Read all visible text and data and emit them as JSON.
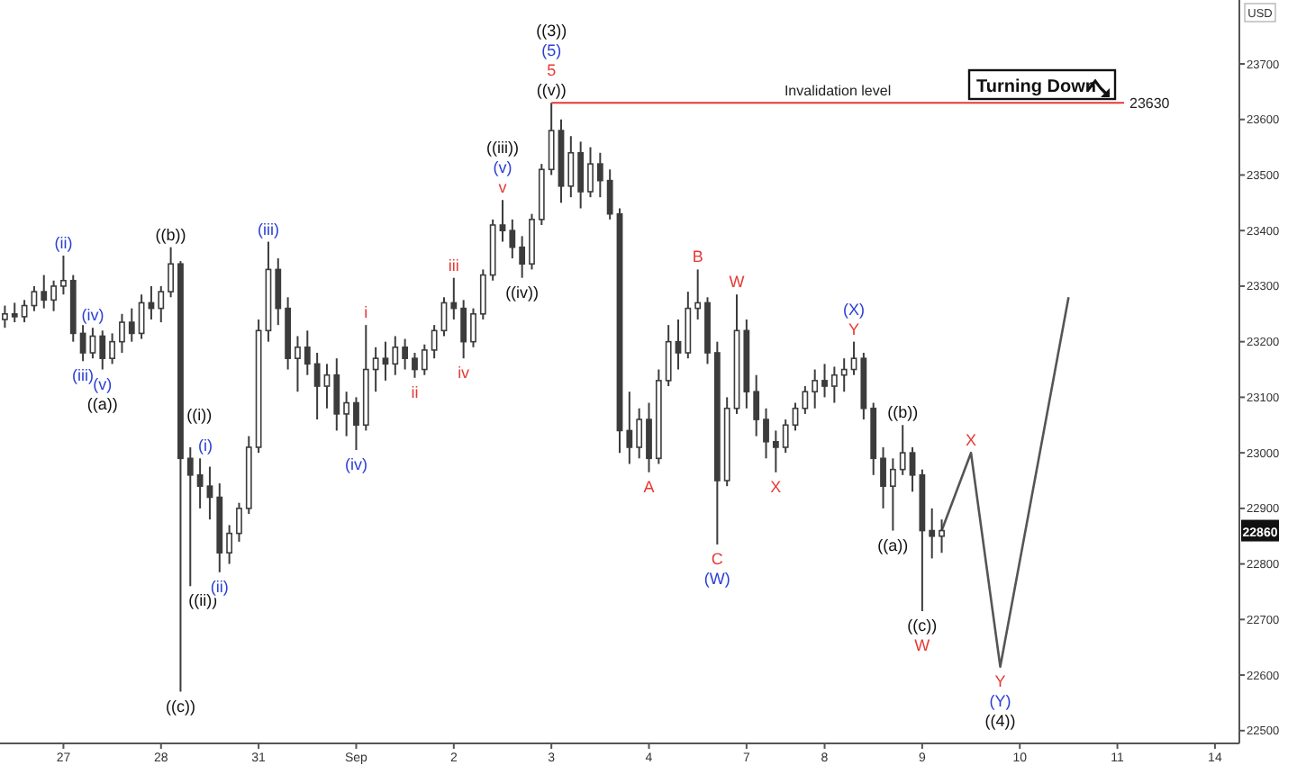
{
  "chart_data": {
    "type": "candlestick",
    "ylabel": "USD",
    "color": "#3c3c3c",
    "categories": [
      null,
      null,
      null,
      null,
      null,
      null,
      "27",
      null,
      null,
      null,
      null,
      null,
      null,
      null,
      null,
      null,
      "28",
      null,
      null,
      null,
      null,
      null,
      null,
      null,
      null,
      null,
      "31",
      null,
      null,
      null,
      null,
      null,
      null,
      null,
      null,
      null,
      "Sep",
      null,
      null,
      null,
      null,
      null,
      null,
      null,
      null,
      null,
      "2",
      null,
      null,
      null,
      null,
      null,
      null,
      null,
      null,
      null,
      "3",
      null,
      null,
      null,
      null,
      null,
      null,
      null,
      null,
      null,
      "4",
      null,
      null,
      null,
      null,
      null,
      null,
      null,
      null,
      null,
      "7",
      null,
      null,
      null,
      null,
      null,
      null,
      null,
      "8",
      null,
      null,
      null,
      null,
      null,
      null,
      null,
      null,
      null,
      "9",
      null,
      null,
      null,
      null,
      null,
      null,
      null,
      null,
      null,
      "10",
      null,
      null,
      null,
      null,
      null,
      null,
      null,
      null,
      null,
      "11",
      null,
      null,
      null,
      null,
      null,
      null,
      null,
      null,
      null,
      "14",
      null,
      null
    ],
    "ohlc": [
      [
        23240,
        23265,
        23225,
        23250
      ],
      [
        23250,
        23270,
        23235,
        23245
      ],
      [
        23245,
        23275,
        23235,
        23265
      ],
      [
        23265,
        23300,
        23255,
        23290
      ],
      [
        23290,
        23320,
        23260,
        23275
      ],
      [
        23275,
        23310,
        23255,
        23300
      ],
      [
        23300,
        23355,
        23285,
        23310
      ],
      [
        23310,
        23320,
        23200,
        23215
      ],
      [
        23215,
        23230,
        23165,
        23180
      ],
      [
        23180,
        23225,
        23170,
        23210
      ],
      [
        23210,
        23220,
        23150,
        23170
      ],
      [
        23170,
        23215,
        23160,
        23200
      ],
      [
        23200,
        23250,
        23180,
        23235
      ],
      [
        23235,
        23260,
        23200,
        23215
      ],
      [
        23215,
        23285,
        23205,
        23270
      ],
      [
        23270,
        23300,
        23240,
        23260
      ],
      [
        23260,
        23300,
        23235,
        23290
      ],
      [
        23290,
        23370,
        23280,
        23340
      ],
      [
        23340,
        23345,
        22570,
        22990
      ],
      [
        22990,
        23010,
        22760,
        22960
      ],
      [
        22960,
        22990,
        22900,
        22940
      ],
      [
        22940,
        22975,
        22880,
        22920
      ],
      [
        22920,
        22945,
        22785,
        22820
      ],
      [
        22820,
        22870,
        22800,
        22855
      ],
      [
        22855,
        22910,
        22840,
        22900
      ],
      [
        22900,
        23030,
        22890,
        23010
      ],
      [
        23010,
        23240,
        23000,
        23220
      ],
      [
        23220,
        23380,
        23200,
        23330
      ],
      [
        23330,
        23350,
        23230,
        23260
      ],
      [
        23260,
        23280,
        23150,
        23170
      ],
      [
        23170,
        23210,
        23110,
        23190
      ],
      [
        23190,
        23220,
        23140,
        23160
      ],
      [
        23160,
        23180,
        23060,
        23120
      ],
      [
        23120,
        23160,
        23080,
        23140
      ],
      [
        23140,
        23170,
        23040,
        23070
      ],
      [
        23070,
        23110,
        23030,
        23090
      ],
      [
        23090,
        23100,
        23005,
        23050
      ],
      [
        23050,
        23230,
        23040,
        23150
      ],
      [
        23150,
        23190,
        23110,
        23170
      ],
      [
        23170,
        23200,
        23130,
        23160
      ],
      [
        23160,
        23210,
        23140,
        23190
      ],
      [
        23190,
        23205,
        23150,
        23170
      ],
      [
        23170,
        23180,
        23135,
        23150
      ],
      [
        23150,
        23195,
        23140,
        23185
      ],
      [
        23185,
        23230,
        23170,
        23220
      ],
      [
        23220,
        23280,
        23210,
        23270
      ],
      [
        23270,
        23315,
        23240,
        23260
      ],
      [
        23260,
        23275,
        23170,
        23200
      ],
      [
        23200,
        23260,
        23190,
        23250
      ],
      [
        23250,
        23330,
        23240,
        23320
      ],
      [
        23320,
        23420,
        23310,
        23410
      ],
      [
        23410,
        23455,
        23380,
        23400
      ],
      [
        23400,
        23420,
        23350,
        23370
      ],
      [
        23370,
        23390,
        23315,
        23340
      ],
      [
        23340,
        23430,
        23330,
        23420
      ],
      [
        23420,
        23520,
        23410,
        23510
      ],
      [
        23510,
        23630,
        23500,
        23580
      ],
      [
        23580,
        23600,
        23450,
        23480
      ],
      [
        23480,
        23570,
        23460,
        23540
      ],
      [
        23540,
        23560,
        23440,
        23470
      ],
      [
        23470,
        23550,
        23460,
        23520
      ],
      [
        23520,
        23540,
        23460,
        23490
      ],
      [
        23490,
        23510,
        23420,
        23430
      ],
      [
        23430,
        23440,
        23000,
        23040
      ],
      [
        23040,
        23110,
        22980,
        23010
      ],
      [
        23010,
        23080,
        22990,
        23060
      ],
      [
        23060,
        23090,
        22965,
        22990
      ],
      [
        22990,
        23150,
        22980,
        23130
      ],
      [
        23130,
        23230,
        23120,
        23200
      ],
      [
        23200,
        23240,
        23150,
        23180
      ],
      [
        23180,
        23290,
        23170,
        23260
      ],
      [
        23260,
        23330,
        23240,
        23270
      ],
      [
        23270,
        23280,
        23160,
        23180
      ],
      [
        23180,
        23200,
        22835,
        22950
      ],
      [
        22950,
        23100,
        22940,
        23080
      ],
      [
        23080,
        23285,
        23070,
        23220
      ],
      [
        23220,
        23240,
        23080,
        23110
      ],
      [
        23110,
        23140,
        23030,
        23060
      ],
      [
        23060,
        23080,
        22990,
        23020
      ],
      [
        23020,
        23040,
        22965,
        23010
      ],
      [
        23010,
        23060,
        23000,
        23050
      ],
      [
        23050,
        23090,
        23040,
        23080
      ],
      [
        23080,
        23120,
        23070,
        23110
      ],
      [
        23110,
        23150,
        23080,
        23130
      ],
      [
        23130,
        23160,
        23100,
        23120
      ],
      [
        23120,
        23155,
        23090,
        23140
      ],
      [
        23140,
        23170,
        23110,
        23150
      ],
      [
        23150,
        23200,
        23140,
        23170
      ],
      [
        23170,
        23180,
        23060,
        23080
      ],
      [
        23080,
        23090,
        22960,
        22990
      ],
      [
        22990,
        23010,
        22900,
        22940
      ],
      [
        22940,
        22990,
        22860,
        22970
      ],
      [
        22970,
        23050,
        22960,
        23000
      ],
      [
        23000,
        23010,
        22930,
        22960
      ],
      [
        22960,
        22970,
        22715,
        22860
      ],
      [
        22860,
        22900,
        22810,
        22850
      ],
      [
        22850,
        22880,
        22820,
        22860
      ],
      null,
      null,
      null,
      null,
      null,
      null,
      null,
      null,
      null,
      null,
      null,
      null,
      null,
      null,
      null,
      null,
      null,
      null,
      null,
      null,
      null,
      null,
      null,
      null,
      null,
      null,
      null,
      null,
      null,
      null
    ],
    "series": [
      {
        "type": "line",
        "color": "#555555",
        "values": [
          null,
          null,
          null,
          null,
          null,
          null,
          null,
          null,
          null,
          null,
          null,
          null,
          null,
          null,
          null,
          null,
          null,
          null,
          null,
          null,
          null,
          null,
          null,
          null,
          null,
          null,
          null,
          null,
          null,
          null,
          null,
          null,
          null,
          null,
          null,
          null,
          null,
          null,
          null,
          null,
          null,
          null,
          null,
          null,
          null,
          null,
          null,
          null,
          null,
          null,
          null,
          null,
          null,
          null,
          null,
          null,
          null,
          null,
          null,
          null,
          null,
          null,
          null,
          null,
          null,
          null,
          null,
          null,
          null,
          null,
          null,
          null,
          null,
          null,
          null,
          null,
          null,
          null,
          null,
          null,
          null,
          null,
          null,
          null,
          null,
          null,
          null,
          null,
          null,
          null,
          null,
          null,
          null,
          null,
          null,
          null,
          22860,
          null,
          null,
          23000,
          null,
          null,
          22615,
          null,
          null,
          null,
          null,
          null,
          null,
          23280,
          null,
          null,
          null,
          null,
          null,
          null,
          null,
          null,
          null,
          null,
          null,
          null,
          null,
          null,
          null,
          null,
          null
        ]
      }
    ],
    "ylim": [
      22477,
      23815
    ],
    "yticks": [
      22500,
      22600,
      22700,
      22800,
      22900,
      23000,
      23100,
      23200,
      23300,
      23400,
      23500,
      23600,
      23700
    ],
    "ref_lines": [
      {
        "axis": "y",
        "value": 23630,
        "label": "Invalidation level",
        "color": "#e53935"
      }
    ],
    "annotations": [
      "Turning Down",
      "23630",
      "22860",
      "(ii)",
      "(iii)",
      "(iv)",
      "(v)",
      "((a))",
      "((b))",
      "((i))",
      "(i)",
      "((ii))",
      "((c))",
      "(ii)",
      "(iii)",
      "(iv)",
      "i",
      "ii",
      "iii",
      "iv",
      "v",
      "(v)",
      "((iii))",
      "((iv))",
      "((v))",
      "5",
      "(5)",
      "((3))",
      "A",
      "B",
      "C",
      "(W)",
      "W",
      "X",
      "Y",
      "(X)",
      "((a))",
      "((b))",
      "((c))",
      "W",
      "X",
      "Y",
      "(Y)",
      "((4))"
    ]
  }
}
